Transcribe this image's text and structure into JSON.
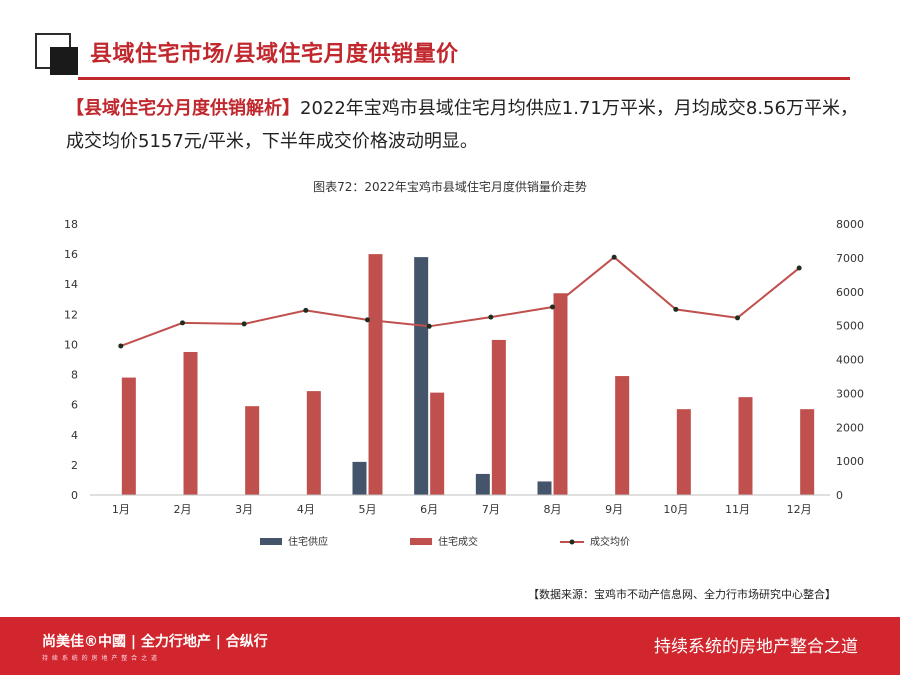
{
  "header": {
    "title": "县域住宅市场/县域住宅月度供销量价"
  },
  "summary": {
    "highlight": "【县域住宅分月度供销解析】",
    "text": "2022年宝鸡市县域住宅月均供应1.71万平米，月均成交8.56万平米，成交均价5157元/平米，下半年成交价格波动明显。"
  },
  "chart_data": {
    "type": "bar",
    "title": "图表72：2022年宝鸡市县域住宅月度供销量价走势",
    "categories": [
      "1月",
      "2月",
      "3月",
      "4月",
      "5月",
      "6月",
      "7月",
      "8月",
      "9月",
      "10月",
      "11月",
      "12月"
    ],
    "series": [
      {
        "name": "住宅供应",
        "type": "bar",
        "axis": "left",
        "color": "#44546a",
        "values": [
          0,
          0,
          0,
          0,
          2.2,
          15.8,
          1.4,
          0.9,
          0,
          0,
          0,
          0
        ]
      },
      {
        "name": "住宅成交",
        "type": "bar",
        "axis": "left",
        "color": "#c0504d",
        "values": [
          7.8,
          9.5,
          5.9,
          6.9,
          16.0,
          6.8,
          10.3,
          13.4,
          7.9,
          5.7,
          6.5,
          5.7
        ]
      },
      {
        "name": "成交均价",
        "type": "line",
        "axis": "right",
        "color": "#c0504d",
        "marker_color": "#1f2d1f",
        "values": [
          4400,
          5080,
          5050,
          5450,
          5170,
          4980,
          5250,
          5550,
          7020,
          5480,
          5230,
          6700
        ]
      }
    ],
    "y_left": {
      "min": 0,
      "max": 18,
      "ticks": [
        0,
        2,
        4,
        6,
        8,
        10,
        12,
        14,
        16,
        18
      ]
    },
    "y_right": {
      "min": 0,
      "max": 8000,
      "ticks": [
        0,
        1000,
        2000,
        3000,
        4000,
        5000,
        6000,
        7000,
        8000
      ]
    },
    "grid": false,
    "legend": "bottom"
  },
  "source": "【数据来源：宝鸡市不动产信息网、全力行市场研究中心整合】",
  "footer": {
    "brand": "尚美佳®中國 | 全力行地产 | 合纵行",
    "sub": "持 续 系 统 的 房 地 产 整 合 之 道",
    "slogan": "持续系统的房地产整合之道"
  }
}
